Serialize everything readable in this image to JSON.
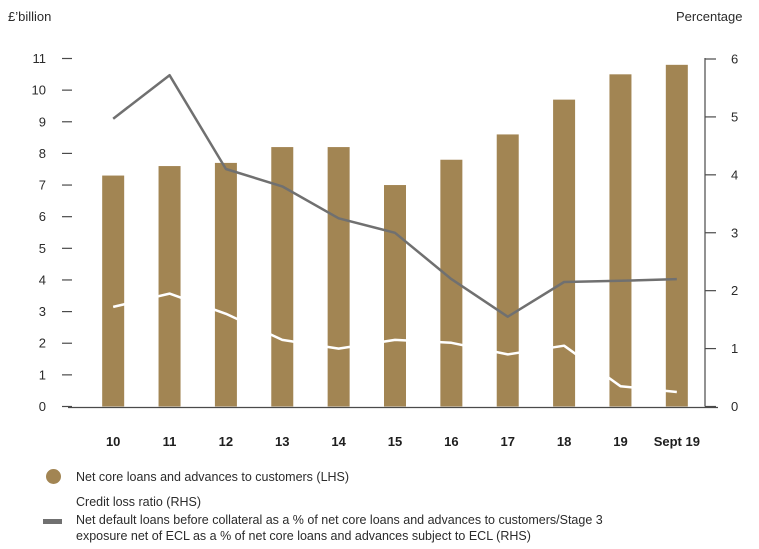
{
  "chart_data": {
    "type": "bar",
    "categories": [
      "10",
      "11",
      "12",
      "13",
      "14",
      "15",
      "16",
      "17",
      "18",
      "19",
      "Sept 19"
    ],
    "left_axis": {
      "label": "£’billion",
      "ticks": [
        0,
        1,
        2,
        3,
        4,
        5,
        6,
        7,
        8,
        9,
        10,
        11
      ],
      "ylim": [
        0,
        11
      ]
    },
    "right_axis": {
      "label": "Percentage",
      "ticks": [
        0,
        1,
        2,
        3,
        4,
        5,
        6
      ],
      "ylim": [
        0,
        6
      ]
    },
    "series": [
      {
        "name": "Net core loans and advances to customers (LHS)",
        "kind": "bar",
        "axis": "left",
        "values": [
          7.3,
          7.6,
          7.7,
          8.2,
          8.2,
          7.0,
          7.8,
          8.6,
          9.7,
          10.5,
          10.8
        ]
      },
      {
        "name": "Credit loss ratio (RHS)",
        "kind": "line",
        "axis": "right",
        "values": [
          1.72,
          1.95,
          1.6,
          1.15,
          1.0,
          1.15,
          1.1,
          0.9,
          1.05,
          0.35,
          0.25
        ]
      },
      {
        "name": "Net default loans before collateral as a % of net core loans and advances to customers/Stage 3 exposure net of ECL as a % of net core loans and advances subject to ECL (RHS)",
        "kind": "line",
        "axis": "right",
        "values": [
          4.97,
          5.72,
          4.1,
          3.8,
          3.25,
          3.0,
          2.2,
          1.55,
          2.15,
          2.17,
          2.2
        ]
      }
    ],
    "grid": false,
    "legend_position": "bottom-left"
  },
  "colors": {
    "bar": "#a28553",
    "credit_loss_line": "#ffffff",
    "default_line": "#707070",
    "axis": "#4a4a4a",
    "text": "#2b2b2b"
  },
  "legend": {
    "bars_label": "Net core loans and advances to customers (LHS)",
    "credit_loss_label": "Credit loss ratio (RHS)",
    "default_label_line1": "Net default loans before collateral as a % of net core loans and advances to customers/Stage 3",
    "default_label_line2": "exposure net of ECL as a % of net core loans and advances subject to ECL (RHS)"
  }
}
